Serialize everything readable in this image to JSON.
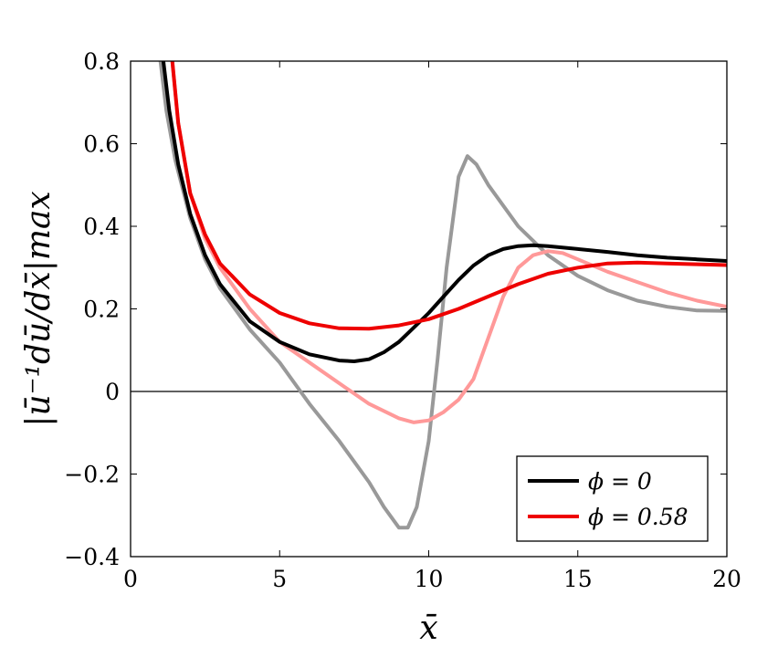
{
  "chart_data": {
    "type": "line",
    "xlabel": "x̄",
    "ylabel": "|ū⁻¹dū/dx̄|max",
    "xlim": [
      0,
      20
    ],
    "ylim": [
      -0.4,
      0.8
    ],
    "x_ticks": [
      0,
      5,
      10,
      15,
      20
    ],
    "x_tick_labels": [
      "0",
      "5",
      "10",
      "15",
      "20"
    ],
    "y_ticks": [
      -0.4,
      -0.2,
      0,
      0.2,
      0.4,
      0.6,
      0.8
    ],
    "y_tick_labels": [
      "−0.4",
      "−0.2",
      "0",
      "0.2",
      "0.4",
      "0.6",
      "0.8"
    ],
    "zero_line": true,
    "grid": false,
    "legend": {
      "position": "bottom-right",
      "entries": [
        {
          "label": "ϕ = 0",
          "color": "#000000"
        },
        {
          "label": "ϕ = 0.58",
          "color": "#ee0000"
        }
      ]
    },
    "series": [
      {
        "color": "#999999",
        "x": [
          1.0,
          1.2,
          1.5,
          2.0,
          2.5,
          3.0,
          4.0,
          5.0,
          5.5,
          6.0,
          7.0,
          8.0,
          8.5,
          9.0,
          9.3,
          9.6,
          10.0,
          10.3,
          10.6,
          11.0,
          11.3,
          11.6,
          12.0,
          13.0,
          14.0,
          15.0,
          16.0,
          17.0,
          18.0,
          19.0,
          20.0
        ],
        "y": [
          0.8,
          0.68,
          0.56,
          0.42,
          0.32,
          0.25,
          0.15,
          0.07,
          0.02,
          -0.03,
          -0.12,
          -0.22,
          -0.28,
          -0.33,
          -0.33,
          -0.28,
          -0.12,
          0.08,
          0.3,
          0.52,
          0.57,
          0.55,
          0.5,
          0.4,
          0.33,
          0.28,
          0.245,
          0.22,
          0.205,
          0.196,
          0.195
        ]
      },
      {
        "color": "#ff9999",
        "x": [
          1.4,
          1.6,
          2.0,
          2.5,
          3.0,
          4.0,
          5.0,
          6.0,
          7.0,
          8.0,
          9.0,
          9.5,
          10.0,
          10.5,
          11.0,
          11.5,
          12.0,
          12.5,
          13.0,
          13.5,
          14.0,
          14.5,
          15.0,
          16.0,
          17.0,
          18.0,
          19.0,
          20.0
        ],
        "y": [
          0.8,
          0.65,
          0.48,
          0.37,
          0.3,
          0.2,
          0.12,
          0.07,
          0.02,
          -0.03,
          -0.065,
          -0.075,
          -0.07,
          -0.05,
          -0.02,
          0.03,
          0.13,
          0.23,
          0.3,
          0.33,
          0.34,
          0.335,
          0.32,
          0.29,
          0.265,
          0.24,
          0.22,
          0.205
        ]
      },
      {
        "color": "#000000",
        "x": [
          1.1,
          1.3,
          1.6,
          2.0,
          2.5,
          3.0,
          4.0,
          5.0,
          6.0,
          7.0,
          7.5,
          8.0,
          8.5,
          9.0,
          9.5,
          10.0,
          10.5,
          11.0,
          11.5,
          12.0,
          12.5,
          13.0,
          13.5,
          14.0,
          15.0,
          16.0,
          17.0,
          18.0,
          19.0,
          20.0
        ],
        "y": [
          0.8,
          0.68,
          0.55,
          0.43,
          0.33,
          0.26,
          0.17,
          0.12,
          0.09,
          0.075,
          0.073,
          0.078,
          0.095,
          0.12,
          0.155,
          0.19,
          0.23,
          0.27,
          0.305,
          0.33,
          0.345,
          0.352,
          0.354,
          0.352,
          0.345,
          0.338,
          0.33,
          0.324,
          0.32,
          0.316
        ]
      },
      {
        "color": "#ee0000",
        "x": [
          1.4,
          1.6,
          2.0,
          2.5,
          3.0,
          4.0,
          5.0,
          6.0,
          7.0,
          8.0,
          9.0,
          10.0,
          11.0,
          12.0,
          13.0,
          14.0,
          15.0,
          16.0,
          17.0,
          18.0,
          19.0,
          20.0
        ],
        "y": [
          0.8,
          0.65,
          0.48,
          0.38,
          0.31,
          0.235,
          0.19,
          0.165,
          0.153,
          0.152,
          0.16,
          0.175,
          0.2,
          0.23,
          0.26,
          0.285,
          0.3,
          0.31,
          0.312,
          0.31,
          0.308,
          0.306
        ]
      }
    ]
  }
}
